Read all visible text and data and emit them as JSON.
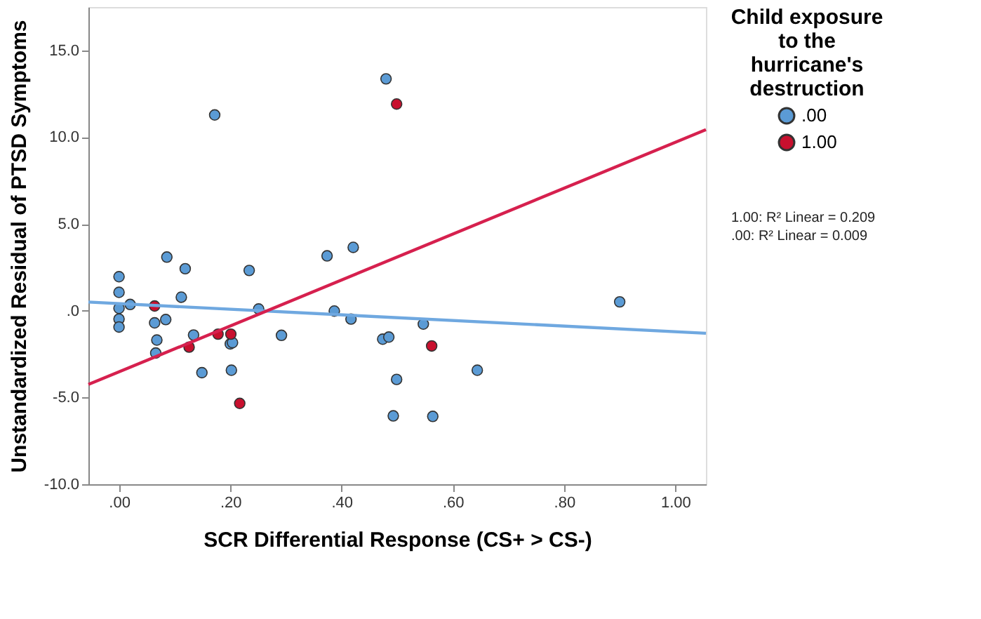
{
  "chart_data": {
    "type": "scatter",
    "xlabel": "SCR Differential Response (CS+ > CS-)",
    "ylabel": "Unstandardized Residual of PTSD Symptoms",
    "legend_title": "Child exposure to the hurricane's destruction",
    "legend": "top right",
    "grid": false,
    "marker": "circle",
    "xlim": [
      -0.055,
      1.055
    ],
    "ylim": [
      -10,
      17.5
    ],
    "xticks": [
      {
        "value": 0,
        "label": ".00"
      },
      {
        "value": 0.2,
        "label": ".20"
      },
      {
        "value": 0.4,
        "label": ".40"
      },
      {
        "value": 0.6,
        "label": ".60"
      },
      {
        "value": 0.8,
        "label": ".80"
      },
      {
        "value": 1.0,
        "label": "1.00"
      }
    ],
    "yticks": [
      {
        "value": -10,
        "label": "-10.0"
      },
      {
        "value": -5,
        "label": "-5.0"
      },
      {
        "value": 0,
        "label": ".0"
      },
      {
        "value": 5,
        "label": "5.0"
      },
      {
        "value": 10,
        "label": "10.0"
      },
      {
        "value": 15,
        "label": "15.0"
      }
    ],
    "annotations": [
      "1.00: R² Linear = 0.209",
      ".00: R² Linear = 0.009"
    ],
    "series": [
      {
        "name": ".00",
        "color": "#5b9bd5",
        "x": [
          0.0,
          0.0,
          0.0,
          0.0,
          0.0,
          0.02,
          0.064,
          0.068,
          0.066,
          0.084,
          0.086,
          0.112,
          0.119,
          0.134,
          0.149,
          0.172,
          0.2,
          0.204,
          0.202,
          0.234,
          0.251,
          0.292,
          0.374,
          0.387,
          0.417,
          0.421,
          0.48,
          0.474,
          0.485,
          0.499,
          0.493,
          0.547,
          0.564,
          0.644,
          0.9
        ],
        "values": [
          1.96,
          1.06,
          0.14,
          -0.48,
          -0.94,
          0.36,
          -0.7,
          -1.69,
          -2.44,
          -0.51,
          3.09,
          0.78,
          2.42,
          -1.4,
          -3.57,
          11.28,
          -1.91,
          -1.84,
          -3.43,
          2.32,
          0.1,
          -1.42,
          3.16,
          -0.02,
          -0.48,
          3.65,
          13.36,
          -1.64,
          -1.52,
          -3.96,
          -6.06,
          -0.77,
          -6.09,
          -3.43,
          0.51
        ]
      },
      {
        "name": "1.00",
        "color": "#c8102e",
        "x": [
          0.064,
          0.126,
          0.178,
          0.201,
          0.217,
          0.499,
          0.562
        ],
        "values": [
          0.27,
          -2.1,
          -1.35,
          -1.35,
          -5.34,
          11.91,
          -2.03
        ]
      },
      {
        "type": "line",
        "marker": "none",
        "color": "#6fa8e0",
        "x": [
          -0.055,
          1.055
        ],
        "values": [
          0.5,
          -1.3
        ]
      },
      {
        "type": "line",
        "marker": "none",
        "color": "#d6204e",
        "x": [
          -0.055,
          1.055
        ],
        "values": [
          -4.25,
          10.43
        ]
      }
    ]
  }
}
